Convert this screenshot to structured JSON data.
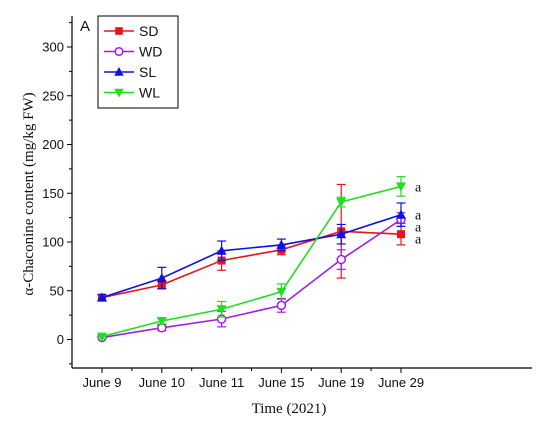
{
  "chart_data": {
    "type": "line",
    "panel_label": "A",
    "xlabel": "Time (2021)",
    "ylabel": "α-Chaconine content (mg/kg FW)",
    "categories": [
      "June 9",
      "June 10",
      "June 11",
      "June 15",
      "June 19",
      "June 29"
    ],
    "ylim": [
      -25,
      345
    ],
    "yticks": [
      0,
      50,
      100,
      150,
      200,
      250,
      300
    ],
    "grid": false,
    "legend_position": "top-left",
    "series": [
      {
        "name": "SD",
        "color": "#e8141a",
        "marker": "square",
        "values": [
          43,
          56,
          81,
          92,
          111,
          108
        ],
        "errors": [
          3,
          4,
          10,
          5,
          48,
          11
        ],
        "sig": "a"
      },
      {
        "name": "WD",
        "color": "#a020e0",
        "marker": "circle-open",
        "values": [
          2,
          12,
          21,
          35,
          82,
          123
        ],
        "errors": [
          1,
          3,
          8,
          7,
          10,
          7
        ],
        "sig": "a"
      },
      {
        "name": "SL",
        "color": "#1010e0",
        "marker": "triangle-up",
        "values": [
          43,
          63,
          91,
          97,
          108,
          128
        ],
        "errors": [
          3,
          11,
          10,
          6,
          10,
          12
        ],
        "sig": "a"
      },
      {
        "name": "WL",
        "color": "#22dd22",
        "marker": "triangle-down",
        "values": [
          3,
          19,
          31,
          49,
          141,
          157
        ],
        "errors": [
          2,
          3,
          8,
          8,
          5,
          10
        ],
        "sig": "a"
      }
    ]
  }
}
